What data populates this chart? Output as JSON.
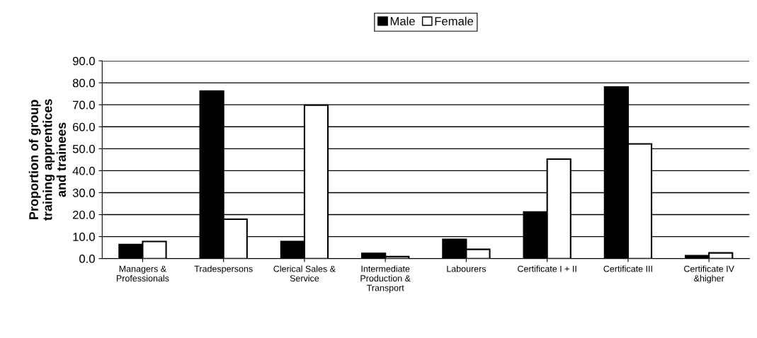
{
  "chart_data": {
    "type": "bar",
    "ylabel": "Proportion of group\ntraining apprentices\nand trainees",
    "categories": [
      "Managers &\nProfessionals",
      "Tradespersons",
      "Clerical Sales &\nService",
      "Intermediate\nProduction &\nTransport",
      "Labourers",
      "Certificate I + II",
      "Certificate III",
      "Certificate IV\n&higher"
    ],
    "series": [
      {
        "name": "Male",
        "color": "#000000",
        "values": [
          6.4,
          76.2,
          7.8,
          2.4,
          8.7,
          21.2,
          78.1,
          1.3
        ]
      },
      {
        "name": "Female",
        "color": "#ffffff",
        "values": [
          7.8,
          17.9,
          69.8,
          0.9,
          4.2,
          45.3,
          52.2,
          2.6
        ]
      }
    ],
    "ylim": [
      0,
      90
    ],
    "yticks": [
      {
        "value": 0,
        "label": "0.0"
      },
      {
        "value": 10,
        "label": "10.0"
      },
      {
        "value": 20,
        "label": "20.0"
      },
      {
        "value": 30,
        "label": "30.0"
      },
      {
        "value": 40,
        "label": "40.0"
      },
      {
        "value": 50,
        "label": "50.0"
      },
      {
        "value": 60,
        "label": "60.0"
      },
      {
        "value": 70,
        "label": "70.0"
      },
      {
        "value": 80,
        "label": "80.0"
      },
      {
        "value": 90,
        "label": "90.0"
      }
    ],
    "grid": "y",
    "legend": "top"
  }
}
